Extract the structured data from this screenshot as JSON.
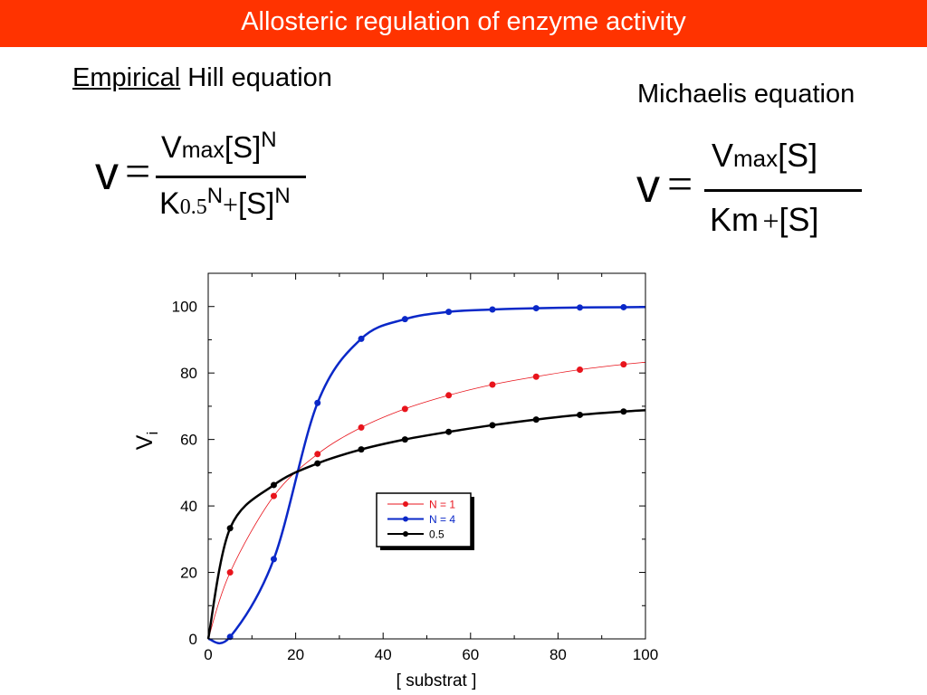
{
  "header": {
    "title": "Allosteric regulation of enzyme activity"
  },
  "hill": {
    "heading_underlined": "Empirical",
    "heading_rest": " Hill equation",
    "lhs": "v",
    "eq": "=",
    "num_v": "V",
    "num_max": "max",
    "num_s": "[S]",
    "num_exp": "N",
    "den_k": "K",
    "den_sub": "0.5",
    "den_exp": "N",
    "den_plus": "+",
    "den_s": "[S]",
    "den_exp2": "N"
  },
  "michaelis": {
    "heading": "Michaelis equation",
    "lhs": "v",
    "eq": "=",
    "num_v": "V",
    "num_max": "max",
    "num_s": "[S]",
    "den_km": "Km",
    "den_plus": "+",
    "den_s": "[S]"
  },
  "chart_data": {
    "type": "scatter",
    "xlabel": "[ substrat ]",
    "ylabel": "V",
    "ylabel_sub": "i",
    "xlim": [
      0,
      100
    ],
    "ylim": [
      0,
      110
    ],
    "x_ticks": [
      "0",
      "20",
      "40",
      "60",
      "80",
      "100"
    ],
    "y_ticks": [
      "0",
      "20",
      "40",
      "60",
      "80",
      "100"
    ],
    "grid": false,
    "legend_position": "center",
    "series": [
      {
        "name": "N = 1",
        "color": "#e8141c",
        "line": "thin",
        "x": [
          5,
          15,
          25,
          35,
          45,
          55,
          65,
          75,
          85,
          95
        ],
        "y": [
          20,
          43,
          55.6,
          63.6,
          69.2,
          73.3,
          76.5,
          78.9,
          81,
          82.6
        ]
      },
      {
        "name": "N = 4",
        "color": "#0a28c8",
        "line": "thick",
        "x": [
          5,
          15,
          25,
          35,
          45,
          55,
          65,
          75,
          85,
          95
        ],
        "y": [
          0.6,
          24,
          71,
          90.3,
          96.2,
          98.4,
          99.1,
          99.5,
          99.7,
          99.8
        ]
      },
      {
        "name": "0.5",
        "color": "#000000",
        "line": "thick",
        "x": [
          5,
          15,
          25,
          35,
          45,
          55,
          65,
          75,
          85,
          95
        ],
        "y": [
          33.3,
          46.3,
          52.8,
          57,
          60,
          62.3,
          64.3,
          66,
          67.4,
          68.4
        ]
      }
    ]
  }
}
